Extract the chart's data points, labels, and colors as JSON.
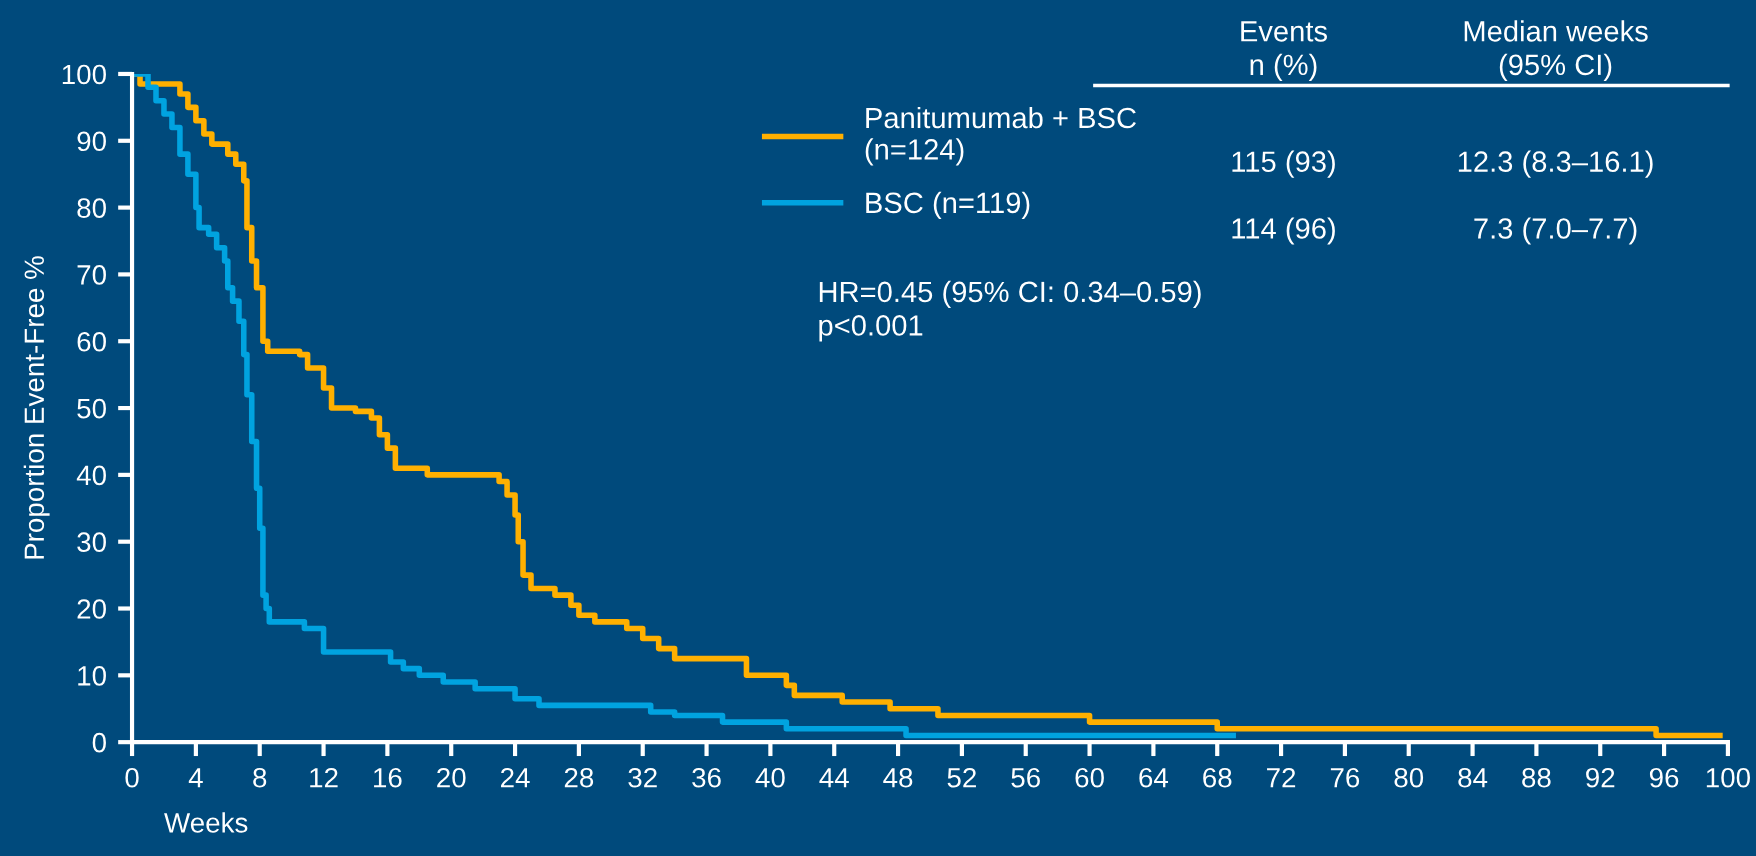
{
  "chart_data": {
    "type": "step",
    "xlabel": "Weeks",
    "ylabel": "Proportion Event-Free %",
    "xlim": [
      0,
      100
    ],
    "xticks": [
      0,
      4,
      8,
      12,
      16,
      20,
      24,
      28,
      32,
      36,
      40,
      44,
      48,
      52,
      56,
      60,
      64,
      68,
      72,
      76,
      80,
      84,
      88,
      92,
      96,
      100
    ],
    "ylim": [
      0,
      100
    ],
    "yticks": [
      0,
      10,
      20,
      30,
      40,
      50,
      60,
      70,
      80,
      90,
      100
    ],
    "grid": false,
    "legend": "top",
    "line_style": "solid",
    "marker": "none",
    "series": [
      {
        "name": "Panitumumab + BSC\n(n=124)",
        "color": "#ffb000",
        "x": [
          0,
          0.5,
          3,
          3.5,
          4,
          4.5,
          5,
          6,
          6.5,
          7,
          7.2,
          7.5,
          7.8,
          8.2,
          8.5,
          10.5,
          11,
          12,
          12.5,
          14,
          15,
          15.5,
          16,
          16.5,
          18.5,
          23,
          23.5,
          24,
          24.2,
          24.5,
          25,
          26.5,
          27.5,
          28,
          29,
          31,
          32,
          33,
          34,
          38.5,
          41,
          41.5,
          44.5,
          47.5,
          50.5,
          60,
          68,
          95.5,
          99.5
        ],
        "values": [
          100,
          98.5,
          97,
          95,
          93,
          91,
          89.5,
          88,
          86.5,
          84,
          77,
          72,
          68,
          60,
          58.5,
          58,
          56,
          53,
          50,
          49.5,
          48.5,
          46,
          44,
          41,
          40,
          39,
          37,
          34,
          30,
          25,
          23,
          22,
          20.5,
          19,
          18,
          17,
          15.5,
          14,
          12.5,
          10,
          8.5,
          7,
          6,
          5,
          4,
          3,
          2,
          1,
          1
        ]
      },
      {
        "name": "BSC (n=119)",
        "color": "#00a3e0",
        "x": [
          0,
          1,
          1.5,
          2,
          2.5,
          3,
          3.5,
          4,
          4.2,
          4.8,
          5.3,
          5.8,
          6,
          6.3,
          6.7,
          7,
          7.2,
          7.5,
          7.8,
          8,
          8.2,
          8.4,
          8.6,
          10.8,
          12,
          16.2,
          17,
          18,
          19.5,
          21.5,
          24,
          25.5,
          32.5,
          34,
          37,
          41,
          48.5,
          69
        ],
        "values": [
          100,
          98,
          96,
          94,
          92,
          88,
          85,
          80,
          77,
          76,
          74,
          72,
          68,
          66,
          63,
          58,
          52,
          45,
          38,
          32,
          22,
          20,
          18,
          17,
          13.5,
          12,
          11,
          10,
          9,
          8,
          6.5,
          5.5,
          4.5,
          4,
          3,
          2,
          1,
          1
        ]
      }
    ],
    "annotations": [
      "HR=0.45 (95% CI: 0.34–0.59)\np<0.001",
      "Events\nn (%)",
      "Median weeks\n(95% CI)",
      "115 (93)",
      "12.3 (8.3–16.1)",
      "114 (96)",
      "7.3 (7.0–7.7)"
    ]
  }
}
